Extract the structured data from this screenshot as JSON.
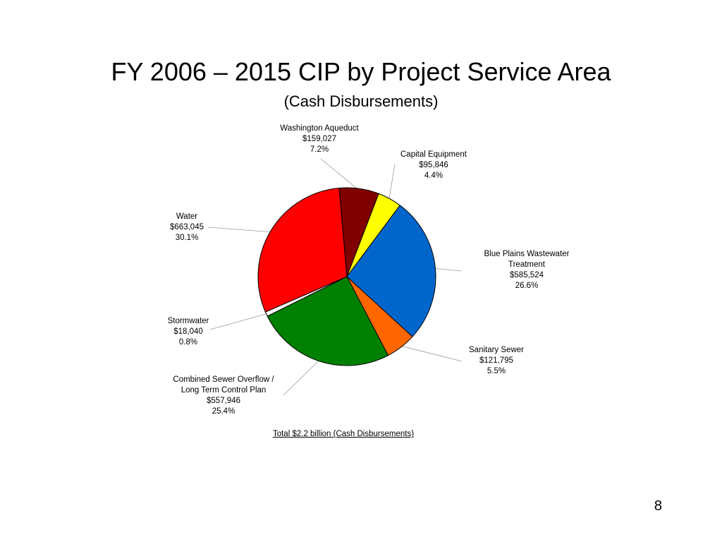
{
  "slide": {
    "title": "FY 2006 – 2015 CIP by Project Service Area",
    "subtitle": "(Cash Disbursements)",
    "total_note": "Total $2.2 billion (Cash Disbursements)",
    "page_number": "8"
  },
  "chart_data": {
    "type": "pie",
    "title": "FY 2006 – 2015 CIP by Project Service Area",
    "subtitle": "(Cash Disbursements)",
    "slices": [
      {
        "name": "Washington Aqueduct",
        "value": 159027,
        "value_label": "$159,027",
        "percent": 7.2,
        "percent_label": "7.2%",
        "color": "#800000"
      },
      {
        "name": "Capital Equipment",
        "value": 95846,
        "value_label": "$95,846",
        "percent": 4.4,
        "percent_label": "4.4%",
        "color": "#ffff00"
      },
      {
        "name": "Blue Plains Wastewater Treatment",
        "name_lines": [
          "Blue Plains Wastewater",
          "Treatment"
        ],
        "value": 585524,
        "value_label": "$585,524",
        "percent": 26.6,
        "percent_label": "26.6%",
        "color": "#0066cc"
      },
      {
        "name": "Sanitary Sewer",
        "value": 121795,
        "value_label": "$121,795",
        "percent": 5.5,
        "percent_label": "5.5%",
        "color": "#ff6600"
      },
      {
        "name": "Combined Sewer Overflow / Long Term Control Plan",
        "name_lines": [
          "Combined Sewer Overflow /",
          "Long Term Control Plan"
        ],
        "value": 557946,
        "value_label": "$557,946",
        "percent": 25.4,
        "percent_label": "25.4%",
        "color": "#008000"
      },
      {
        "name": "Stormwater",
        "value": 18040,
        "value_label": "$18,040",
        "percent": 0.8,
        "percent_label": "0.8%",
        "color": "#ffffff"
      },
      {
        "name": "Water",
        "value": 663045,
        "value_label": "$663,045",
        "percent": 30.1,
        "percent_label": "30.1%",
        "color": "#ff0000"
      }
    ]
  }
}
